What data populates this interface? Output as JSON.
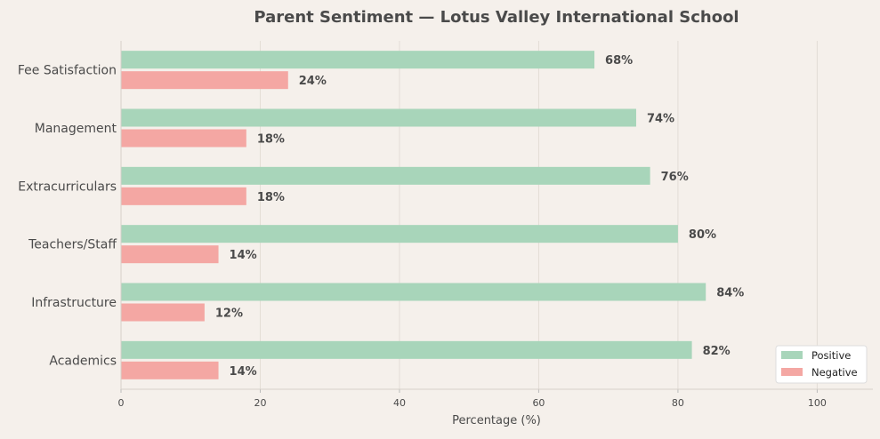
{
  "chart_data": {
    "type": "bar",
    "orientation": "horizontal",
    "title": "Parent Sentiment — Lotus Valley International School",
    "xlabel": "Percentage (%)",
    "ylabel": "",
    "xlim": [
      0,
      108
    ],
    "xticks": [
      0,
      20,
      40,
      60,
      80,
      100
    ],
    "grid": "vertical",
    "legend_position": "bottom-right",
    "categories": [
      "Fee Satisfaction",
      "Management",
      "Extracurriculars",
      "Teachers/Staff",
      "Infrastructure",
      "Academics"
    ],
    "series": [
      {
        "name": "Positive",
        "color": "#a8d5ba",
        "values": [
          68,
          74,
          76,
          80,
          84,
          82
        ]
      },
      {
        "name": "Negative",
        "color": "#f4a7a3",
        "values": [
          24,
          18,
          18,
          14,
          12,
          14
        ]
      }
    ],
    "value_label_suffix": "%"
  }
}
